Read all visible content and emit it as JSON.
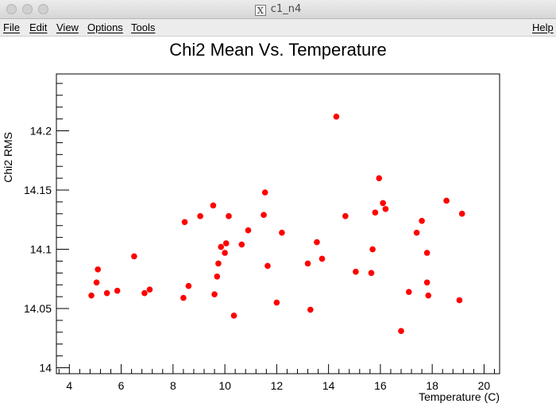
{
  "window": {
    "title": "c1_n4",
    "icon": "x11-icon",
    "icon_glyph": "X"
  },
  "menu": {
    "file": "File",
    "edit": "Edit",
    "view": "View",
    "options": "Options",
    "tools": "Tools",
    "help": "Help"
  },
  "chart_data": {
    "type": "scatter",
    "title": "Chi2 Mean Vs. Temperature",
    "xlabel": "Temperature (C)",
    "ylabel": "Chi2 RMS",
    "xlim": [
      3.5,
      20.6
    ],
    "ylim": [
      13.995,
      14.248
    ],
    "x_ticks": [
      4,
      6,
      8,
      10,
      12,
      14,
      16,
      18,
      20
    ],
    "y_ticks": [
      14,
      14.05,
      14.1,
      14.15,
      14.2
    ],
    "y_tick_labels": [
      "14",
      "14.05",
      "14.1",
      "14.15",
      "14.2"
    ],
    "grid": false,
    "marker_color": "#ff0000",
    "points": [
      [
        4.85,
        14.061
      ],
      [
        5.05,
        14.072
      ],
      [
        5.1,
        14.083
      ],
      [
        5.45,
        14.063
      ],
      [
        5.85,
        14.065
      ],
      [
        6.5,
        14.094
      ],
      [
        6.9,
        14.063
      ],
      [
        7.1,
        14.066
      ],
      [
        8.4,
        14.059
      ],
      [
        8.45,
        14.123
      ],
      [
        8.6,
        14.069
      ],
      [
        9.05,
        14.128
      ],
      [
        9.55,
        14.137
      ],
      [
        9.6,
        14.062
      ],
      [
        9.7,
        14.077
      ],
      [
        9.75,
        14.088
      ],
      [
        9.85,
        14.102
      ],
      [
        10.0,
        14.097
      ],
      [
        10.05,
        14.105
      ],
      [
        10.15,
        14.128
      ],
      [
        10.35,
        14.044
      ],
      [
        10.65,
        14.104
      ],
      [
        10.9,
        14.116
      ],
      [
        11.5,
        14.129
      ],
      [
        11.55,
        14.148
      ],
      [
        11.65,
        14.086
      ],
      [
        12.0,
        14.055
      ],
      [
        12.2,
        14.114
      ],
      [
        13.2,
        14.088
      ],
      [
        13.3,
        14.049
      ],
      [
        13.55,
        14.106
      ],
      [
        13.75,
        14.092
      ],
      [
        14.3,
        14.212
      ],
      [
        14.65,
        14.128
      ],
      [
        15.05,
        14.081
      ],
      [
        15.65,
        14.08
      ],
      [
        15.7,
        14.1
      ],
      [
        15.8,
        14.131
      ],
      [
        15.95,
        14.16
      ],
      [
        16.1,
        14.139
      ],
      [
        16.2,
        14.134
      ],
      [
        16.8,
        14.031
      ],
      [
        17.1,
        14.064
      ],
      [
        17.4,
        14.114
      ],
      [
        17.6,
        14.124
      ],
      [
        17.8,
        14.072
      ],
      [
        17.8,
        14.097
      ],
      [
        17.85,
        14.061
      ],
      [
        18.55,
        14.141
      ],
      [
        19.05,
        14.057
      ],
      [
        19.15,
        14.13
      ]
    ]
  }
}
